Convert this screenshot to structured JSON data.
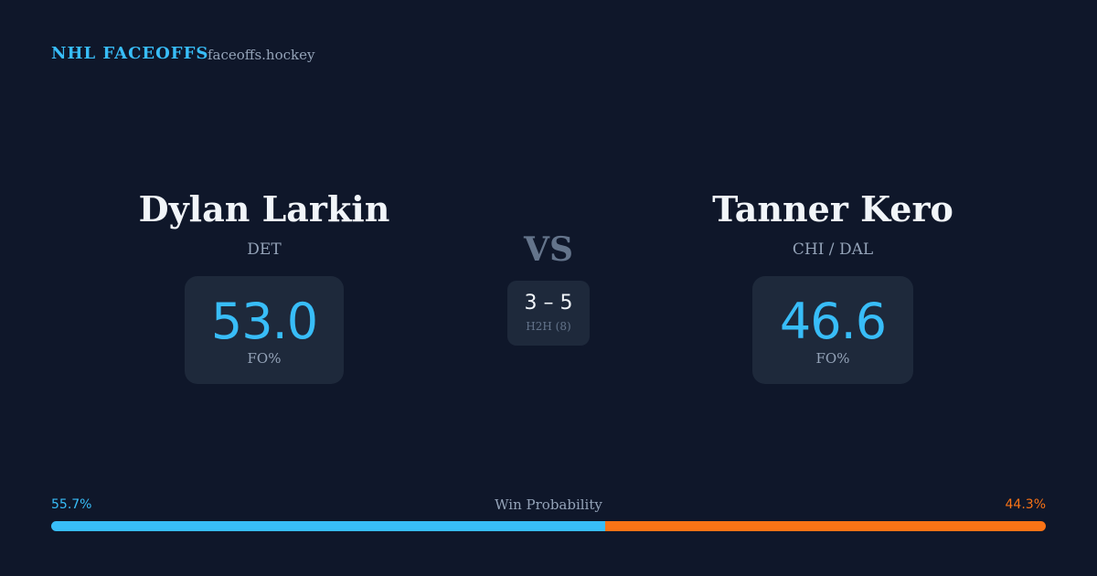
{
  "header": {
    "title": "NHL FACEOFFS",
    "site": "faceoffs.hockey"
  },
  "players": [
    {
      "name": "Dylan Larkin",
      "team": "DET",
      "fo_pct": "53.0",
      "fo_label": "FO%"
    },
    {
      "name": "Tanner Kero",
      "team": "CHI / DAL",
      "fo_pct": "46.6",
      "fo_label": "FO%"
    }
  ],
  "versus": "VS",
  "h2h": {
    "score": "3 – 5",
    "label": "H2H (8)"
  },
  "win_probability": {
    "title": "Win Probability",
    "left": {
      "value": 55.7,
      "label": "55.7%",
      "color": "#38bdf8"
    },
    "right": {
      "value": 44.3,
      "label": "44.3%",
      "color": "#f97316"
    }
  }
}
